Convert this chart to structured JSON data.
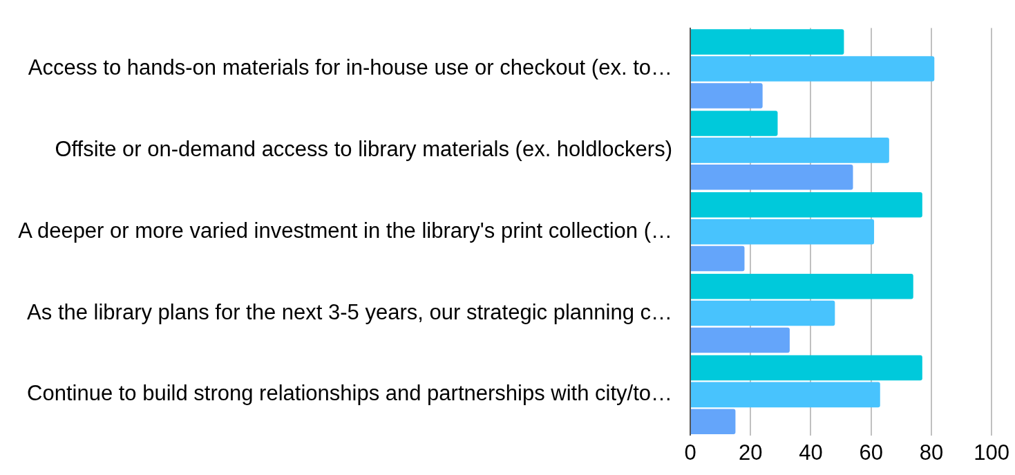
{
  "chart_data": {
    "type": "bar",
    "orientation": "horizontal",
    "categories": [
      "Access to hands-on materials for in-house use or checkout (ex. to…",
      "Offsite or on-demand access to library materials (ex. holdlockers)",
      "A deeper or more varied investment in the library's print collection (…",
      "As the library plans for the next 3-5 years, our strategic planning c…",
      "Continue to build strong relationships and partnerships with city/to…"
    ],
    "series": [
      {
        "color": "#00c9db",
        "values": [
          51,
          29,
          77,
          74,
          77
        ]
      },
      {
        "color": "#48c3fd",
        "values": [
          81,
          66,
          61,
          48,
          63
        ]
      },
      {
        "color": "#64a5fa",
        "values": [
          24,
          54,
          18,
          33,
          15
        ]
      }
    ],
    "xlim": [
      0,
      100
    ],
    "xticks": [
      0,
      20,
      40,
      60,
      80,
      100
    ],
    "grid": "x",
    "legend": false
  }
}
